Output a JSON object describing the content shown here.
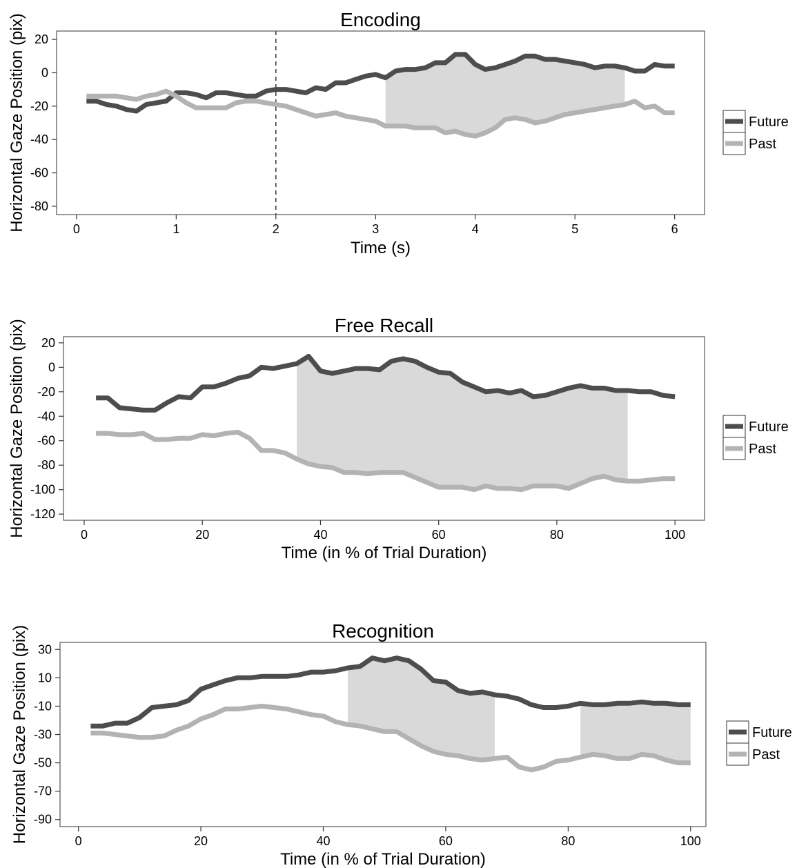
{
  "chart_data": [
    {
      "type": "line",
      "title": "Encoding",
      "xlabel": "Time (s)",
      "ylabel": "Horizontal Gaze Position (pix)",
      "xlim": [
        -0.2,
        6.3
      ],
      "ylim": [
        -85,
        25
      ],
      "xticks": [
        0,
        1,
        2,
        3,
        4,
        5,
        6
      ],
      "yticks": [
        20,
        0,
        -20,
        -40,
        -60,
        -80
      ],
      "vline_x": 2,
      "shaded_regions": [
        [
          3.1,
          5.5
        ]
      ],
      "legend_position": "right",
      "series": [
        {
          "name": "Future",
          "color": "#4d4d4d",
          "x": [
            0.1,
            0.2,
            0.3,
            0.4,
            0.5,
            0.6,
            0.7,
            0.8,
            0.9,
            1.0,
            1.1,
            1.2,
            1.3,
            1.4,
            1.5,
            1.6,
            1.7,
            1.8,
            1.9,
            2.0,
            2.1,
            2.2,
            2.3,
            2.4,
            2.5,
            2.6,
            2.7,
            2.8,
            2.9,
            3.0,
            3.1,
            3.2,
            3.3,
            3.4,
            3.5,
            3.6,
            3.7,
            3.8,
            3.9,
            4.0,
            4.1,
            4.2,
            4.3,
            4.4,
            4.5,
            4.6,
            4.7,
            4.8,
            4.9,
            5.0,
            5.1,
            5.2,
            5.3,
            5.4,
            5.5,
            5.6,
            5.7,
            5.8,
            5.9,
            6.0
          ],
          "values": [
            -17,
            -17,
            -19,
            -20,
            -22,
            -23,
            -19,
            -18,
            -17,
            -12,
            -12,
            -13,
            -15,
            -12,
            -12,
            -13,
            -14,
            -14,
            -11,
            -10,
            -10,
            -11,
            -12,
            -9,
            -10,
            -6,
            -6,
            -4,
            -2,
            -1,
            -3,
            1,
            2,
            2,
            3,
            6,
            6,
            11,
            11,
            5,
            2,
            3,
            5,
            7,
            10,
            10,
            8,
            8,
            7,
            6,
            5,
            3,
            4,
            4,
            3,
            1,
            1,
            5,
            4,
            4
          ]
        },
        {
          "name": "Past",
          "color": "#b3b3b3",
          "x": [
            0.1,
            0.2,
            0.3,
            0.4,
            0.5,
            0.6,
            0.7,
            0.8,
            0.9,
            1.0,
            1.1,
            1.2,
            1.3,
            1.4,
            1.5,
            1.6,
            1.7,
            1.8,
            1.9,
            2.0,
            2.1,
            2.2,
            2.3,
            2.4,
            2.5,
            2.6,
            2.7,
            2.8,
            2.9,
            3.0,
            3.1,
            3.2,
            3.3,
            3.4,
            3.5,
            3.6,
            3.7,
            3.8,
            3.9,
            4.0,
            4.1,
            4.2,
            4.3,
            4.4,
            4.5,
            4.6,
            4.7,
            4.8,
            4.9,
            5.0,
            5.1,
            5.2,
            5.3,
            5.4,
            5.5,
            5.6,
            5.7,
            5.8,
            5.9,
            6.0
          ],
          "values": [
            -14,
            -14,
            -14,
            -14,
            -15,
            -16,
            -14,
            -13,
            -11,
            -14,
            -18,
            -21,
            -21,
            -21,
            -21,
            -18,
            -17,
            -17,
            -18,
            -19,
            -20,
            -22,
            -24,
            -26,
            -25,
            -24,
            -26,
            -27,
            -28,
            -29,
            -32,
            -32,
            -32,
            -33,
            -33,
            -33,
            -36,
            -35,
            -37,
            -38,
            -36,
            -33,
            -28,
            -27,
            -28,
            -30,
            -29,
            -27,
            -25,
            -24,
            -23,
            -22,
            -21,
            -20,
            -19,
            -17,
            -21,
            -20,
            -24,
            -24
          ]
        }
      ]
    },
    {
      "type": "line",
      "title": "Free Recall",
      "xlabel": "Time (in % of Trial Duration)",
      "ylabel": "Horizontal Gaze Position (pix)",
      "xlim": [
        -3.5,
        105
      ],
      "ylim": [
        -125,
        25
      ],
      "xticks": [
        0,
        20,
        40,
        60,
        80,
        100
      ],
      "yticks": [
        20,
        0,
        -20,
        -40,
        -60,
        -80,
        -100,
        -120
      ],
      "shaded_regions": [
        [
          36,
          92
        ]
      ],
      "legend_position": "right",
      "series": [
        {
          "name": "Future",
          "color": "#4d4d4d",
          "x": [
            2,
            4,
            6,
            8,
            10,
            12,
            14,
            16,
            18,
            20,
            22,
            24,
            26,
            28,
            30,
            32,
            34,
            36,
            38,
            40,
            42,
            44,
            46,
            48,
            50,
            52,
            54,
            56,
            58,
            60,
            62,
            64,
            66,
            68,
            70,
            72,
            74,
            76,
            78,
            80,
            82,
            84,
            86,
            88,
            90,
            92,
            94,
            96,
            98,
            100
          ],
          "values": [
            -25,
            -25,
            -33,
            -34,
            -35,
            -35,
            -29,
            -24,
            -25,
            -16,
            -16,
            -13,
            -9,
            -7,
            0,
            -1,
            1,
            3,
            9,
            -3,
            -5,
            -3,
            -1,
            -1,
            -2,
            5,
            7,
            5,
            0,
            -4,
            -5,
            -12,
            -16,
            -20,
            -19,
            -21,
            -19,
            -24,
            -23,
            -20,
            -17,
            -15,
            -17,
            -17,
            -19,
            -19,
            -20,
            -20,
            -23,
            -24
          ]
        },
        {
          "name": "Past",
          "color": "#b3b3b3",
          "x": [
            2,
            4,
            6,
            8,
            10,
            12,
            14,
            16,
            18,
            20,
            22,
            24,
            26,
            28,
            30,
            32,
            34,
            36,
            38,
            40,
            42,
            44,
            46,
            48,
            50,
            52,
            54,
            56,
            58,
            60,
            62,
            64,
            66,
            68,
            70,
            72,
            74,
            76,
            78,
            80,
            82,
            84,
            86,
            88,
            90,
            92,
            94,
            96,
            98,
            100
          ],
          "values": [
            -54,
            -54,
            -55,
            -55,
            -54,
            -59,
            -59,
            -58,
            -58,
            -55,
            -56,
            -54,
            -53,
            -58,
            -68,
            -68,
            -70,
            -75,
            -79,
            -81,
            -82,
            -86,
            -86,
            -87,
            -86,
            -86,
            -86,
            -90,
            -94,
            -98,
            -98,
            -98,
            -100,
            -97,
            -99,
            -99,
            -100,
            -97,
            -97,
            -97,
            -99,
            -95,
            -91,
            -89,
            -92,
            -93,
            -93,
            -92,
            -91,
            -91
          ]
        }
      ]
    },
    {
      "type": "line",
      "title": "Recognition",
      "xlabel": "Time (in % of Trial Duration)",
      "ylabel": "Horizontal Gaze Position (pix)",
      "xlim": [
        -3,
        102.5
      ],
      "ylim": [
        -95,
        35
      ],
      "xticks": [
        0,
        20,
        40,
        60,
        80,
        100
      ],
      "yticks": [
        30,
        10,
        -10,
        -30,
        -50,
        -70,
        -90
      ],
      "shaded_regions": [
        [
          44,
          68
        ],
        [
          82,
          100
        ]
      ],
      "legend_position": "right",
      "series": [
        {
          "name": "Future",
          "color": "#4d4d4d",
          "x": [
            2,
            4,
            6,
            8,
            10,
            12,
            14,
            16,
            18,
            20,
            22,
            24,
            26,
            28,
            30,
            32,
            34,
            36,
            38,
            40,
            42,
            44,
            46,
            48,
            50,
            52,
            54,
            56,
            58,
            60,
            62,
            64,
            66,
            68,
            70,
            72,
            74,
            76,
            78,
            80,
            82,
            84,
            86,
            88,
            90,
            92,
            94,
            96,
            98,
            100
          ],
          "values": [
            -24,
            -24,
            -22,
            -22,
            -18,
            -11,
            -10,
            -9,
            -6,
            2,
            5,
            8,
            10,
            10,
            11,
            11,
            11,
            12,
            14,
            14,
            15,
            17,
            18,
            24,
            22,
            24,
            22,
            16,
            8,
            7,
            1,
            -1,
            0,
            -2,
            -3,
            -5,
            -9,
            -11,
            -11,
            -10,
            -8,
            -9,
            -9,
            -8,
            -8,
            -7,
            -8,
            -8,
            -9,
            -9
          ]
        },
        {
          "name": "Past",
          "color": "#b3b3b3",
          "x": [
            2,
            4,
            6,
            8,
            10,
            12,
            14,
            16,
            18,
            20,
            22,
            24,
            26,
            28,
            30,
            32,
            34,
            36,
            38,
            40,
            42,
            44,
            46,
            48,
            50,
            52,
            54,
            56,
            58,
            60,
            62,
            64,
            66,
            68,
            70,
            72,
            74,
            76,
            78,
            80,
            82,
            84,
            86,
            88,
            90,
            92,
            94,
            96,
            98,
            100
          ],
          "values": [
            -29,
            -29,
            -30,
            -31,
            -32,
            -32,
            -31,
            -27,
            -24,
            -19,
            -16,
            -12,
            -12,
            -11,
            -10,
            -11,
            -12,
            -14,
            -16,
            -17,
            -21,
            -23,
            -24,
            -26,
            -28,
            -28,
            -33,
            -38,
            -42,
            -44,
            -45,
            -47,
            -48,
            -47,
            -46,
            -53,
            -55,
            -53,
            -49,
            -48,
            -46,
            -44,
            -45,
            -47,
            -47,
            -44,
            -45,
            -48,
            -50,
            -50
          ]
        }
      ]
    }
  ]
}
